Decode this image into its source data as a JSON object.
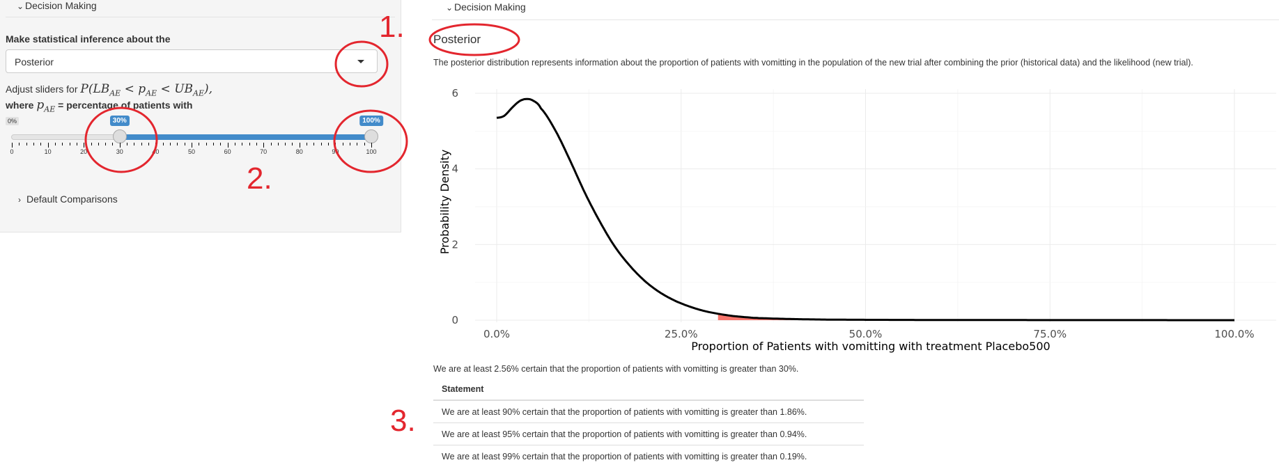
{
  "sidebar": {
    "decision_header": "Decision Making",
    "inference_label": "Make statistical inference about the",
    "inference_select": {
      "value": "Posterior"
    },
    "help_text_prefix": "Adjust sliders for",
    "help_math": "P(LB",
    "help_math_sub1": "AE",
    "help_math_mid": " < p",
    "help_math_sub2": "AE",
    "help_math_end": " < UB",
    "help_math_sub3": "AE",
    "help_math_close": "),",
    "help2_prefix": "where",
    "help2_var": "p",
    "help2_var_sub": "AE",
    "help2_suffix": "= percentage of patients with",
    "slider": {
      "min_label": "0%",
      "low_label": "30%",
      "high_label": "100%",
      "low_value": 30,
      "high_value": 100,
      "ticks": [
        "0",
        "10",
        "20",
        "30",
        "40",
        "50",
        "60",
        "70",
        "80",
        "90",
        "100"
      ]
    },
    "comparisons_header": "Default Comparisons"
  },
  "main": {
    "decision_header": "Decision Making",
    "title": "Posterior",
    "description": "The posterior distribution represents information about the proportion of patients with vomitting in the population of the new trial after combining the prior (historical data) and the likelihood (new trial).",
    "certainty_text": "We are at least 2.56% certain that the proportion of patients with vomitting is greater than 30%.",
    "table": {
      "header": "Statement",
      "rows": [
        "We are at least 90% certain that the proportion of patients with vomitting is greater than 1.86%.",
        "We are at least 95% certain that the proportion of patients with vomitting is greater than 0.94%.",
        "We are at least 99% certain that the proportion of patients with vomitting is greater than 0.19%."
      ]
    }
  },
  "chart_data": {
    "type": "line",
    "xlabel": "Proportion of Patients with vomitting with treatment Placebo500",
    "ylabel": "Probability Density",
    "xlim": [
      0,
      1
    ],
    "ylim": [
      0,
      6
    ],
    "x_ticks": [
      "0.0%",
      "25.0%",
      "50.0%",
      "75.0%",
      "100.0%"
    ],
    "y_ticks": [
      "0",
      "2",
      "4",
      "6"
    ],
    "x": [
      0.0,
      0.01,
      0.02,
      0.03,
      0.04,
      0.05,
      0.06,
      0.08,
      0.1,
      0.12,
      0.14,
      0.16,
      0.18,
      0.2,
      0.22,
      0.24,
      0.26,
      0.28,
      0.3,
      0.32,
      0.35,
      0.4,
      0.45,
      0.5,
      0.6,
      0.7,
      0.8,
      0.9,
      1.0
    ],
    "y": [
      5.35,
      5.4,
      5.6,
      5.78,
      5.85,
      5.8,
      5.6,
      5.0,
      4.2,
      3.35,
      2.6,
      1.95,
      1.45,
      1.05,
      0.75,
      0.53,
      0.37,
      0.25,
      0.17,
      0.11,
      0.06,
      0.03,
      0.015,
      0.01,
      0.005,
      0.003,
      0.002,
      0.001,
      0.0
    ],
    "shaded_region": {
      "from": 0.3,
      "to": 1.0,
      "color": "#f8766d"
    },
    "line_color": "#000000"
  },
  "annotations": [
    "1.",
    "2.",
    "3."
  ],
  "colors": {
    "accent": "#428bca",
    "annotation": "#e3262e"
  }
}
